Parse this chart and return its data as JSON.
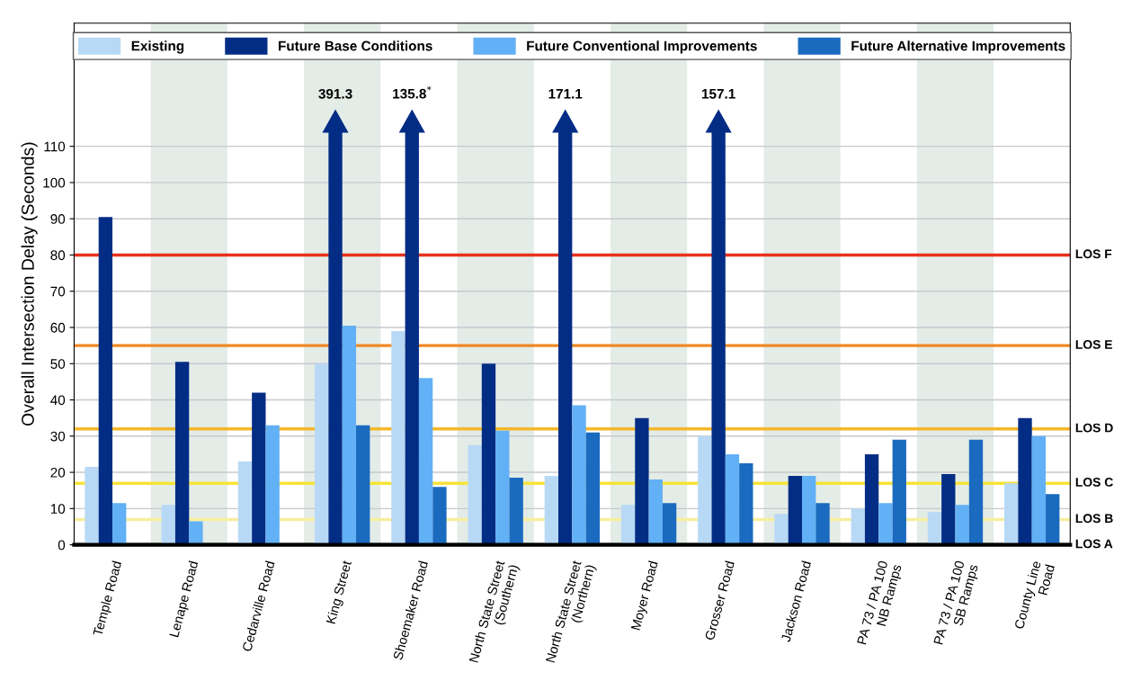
{
  "chart_data": {
    "type": "bar",
    "ylabel": "Overall Intersection Delay (Seconds)",
    "categories": [
      "Temple Road",
      "Lenape Road",
      "Cedarville Road",
      "King Street",
      "Shoemaker Road",
      "North State Street\n(Southern)",
      "North State Street\n(Northern)",
      "Moyer Road",
      "Grosser Road",
      "Jackson Road",
      "PA 73 / PA 100\nNB Ramps",
      "PA 73 / PA 100\nSB Ramps",
      "County Line\nRoad"
    ],
    "series": [
      {
        "name": "Existing",
        "color": "#b8d9f5",
        "values": [
          21.5,
          11,
          23,
          50,
          59,
          27.5,
          19,
          11,
          30,
          8.5,
          10,
          9,
          17
        ]
      },
      {
        "name": "Future Base Conditions",
        "color": "#032d85",
        "values": [
          90.5,
          50.5,
          42,
          null,
          null,
          50,
          null,
          35,
          null,
          19,
          25,
          19.5,
          35
        ],
        "value_labels": [
          null,
          null,
          null,
          "391.3",
          "135.8$^{*}$",
          null,
          "171.1",
          null,
          "157.1",
          null,
          null,
          null,
          null
        ]
      },
      {
        "name": "Future Conventional Improvements",
        "color": "#62b0f5",
        "values": [
          11.5,
          6.5,
          33,
          60.5,
          46,
          31.5,
          38.5,
          18,
          25,
          19,
          11.5,
          11,
          30
        ]
      },
      {
        "name": "Future Alternative Improvements",
        "color": "#1a6bbf",
        "values": [
          null,
          null,
          null,
          33,
          16,
          18.5,
          31,
          11.5,
          22.5,
          11.5,
          29,
          29,
          14
        ]
      }
    ],
    "ylim": [
      0,
      144
    ],
    "yticks": [
      0,
      10,
      20,
      30,
      40,
      50,
      60,
      70,
      80,
      90,
      100,
      110
    ],
    "ref_lines": [
      {
        "axis": "y",
        "value": 80,
        "label": "LOS F",
        "color": "#e8321e"
      },
      {
        "axis": "y",
        "value": 55,
        "label": "LOS E",
        "color": "#f08a24"
      },
      {
        "axis": "y",
        "value": 32,
        "label": "LOS D",
        "color": "#f5b82a"
      },
      {
        "axis": "y",
        "value": 17,
        "label": "LOS C",
        "color": "#f7e33a"
      },
      {
        "axis": "y",
        "value": 7,
        "label": "LOS B",
        "color": "#f7ee9e"
      },
      {
        "axis": "y",
        "value": 0,
        "label": "LOS A",
        "color": "#000000"
      }
    ],
    "bands": [
      {
        "axis": "x",
        "from": "Lenape Road",
        "to": "Lenape Road",
        "color": "#e3ece6"
      },
      {
        "axis": "x",
        "from": "King Street",
        "to": "King Street",
        "color": "#e3ece6"
      },
      {
        "axis": "x",
        "from": "North State Street\n(Southern)",
        "to": "North State Street\n(Southern)",
        "color": "#e3ece6"
      },
      {
        "axis": "x",
        "from": "Moyer Road",
        "to": "Moyer Road",
        "color": "#e3ece6"
      },
      {
        "axis": "x",
        "from": "Jackson Road",
        "to": "Jackson Road",
        "color": "#e3ece6"
      },
      {
        "axis": "x",
        "from": "PA 73 / PA 100\nSB Ramps",
        "to": "PA 73 / PA 100\nSB Ramps",
        "color": "#e3ece6"
      }
    ],
    "grid": "y",
    "legend": "top"
  }
}
